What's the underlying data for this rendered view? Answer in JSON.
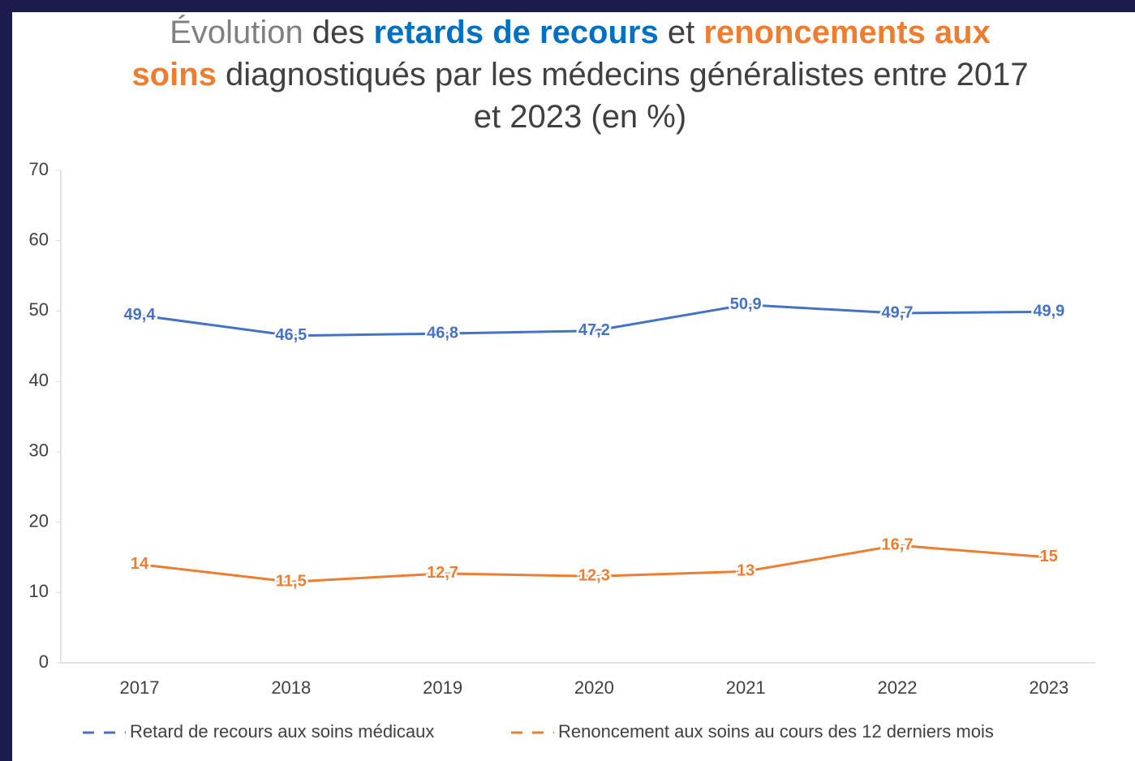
{
  "chart_data": {
    "type": "line",
    "title_parts": [
      {
        "text": "Évolution",
        "color": "#808080",
        "bold": false
      },
      {
        "text": "des",
        "color": "#404040",
        "bold": false
      },
      {
        "text": "retards de recours",
        "color": "#0070c0",
        "bold": true
      },
      {
        "text": "et",
        "color": "#404040",
        "bold": false
      },
      {
        "text": "renoncements aux soins",
        "color": "#ed7d31",
        "bold": true
      },
      {
        "text": "diagnostiqués par les médecins généralistes entre 2017 et 2023 (en %)",
        "color": "#404040",
        "bold": false
      }
    ],
    "categories": [
      "2017",
      "2018",
      "2019",
      "2020",
      "2021",
      "2022",
      "2023"
    ],
    "series": [
      {
        "name": "Retard de recours aux soins médicaux",
        "color": "#4472c4",
        "values": [
          49.4,
          46.5,
          46.8,
          47.2,
          50.9,
          49.7,
          49.9
        ],
        "value_labels": [
          "49,4",
          "46,5",
          "46,8",
          "47,2",
          "50,9",
          "49,7",
          "49,9"
        ]
      },
      {
        "name": "Renoncement aux soins au cours des 12 derniers mois",
        "color": "#ed7d31",
        "values": [
          14,
          11.5,
          12.7,
          12.3,
          13,
          16.7,
          15
        ],
        "value_labels": [
          "14",
          "11,5",
          "12,7",
          "12,3",
          "13",
          "16,7",
          "15"
        ]
      }
    ],
    "ylim": [
      0,
      70
    ],
    "yticks": [
      0,
      10,
      20,
      30,
      40,
      50,
      60,
      70
    ],
    "grid": false,
    "legend": "bottom"
  }
}
